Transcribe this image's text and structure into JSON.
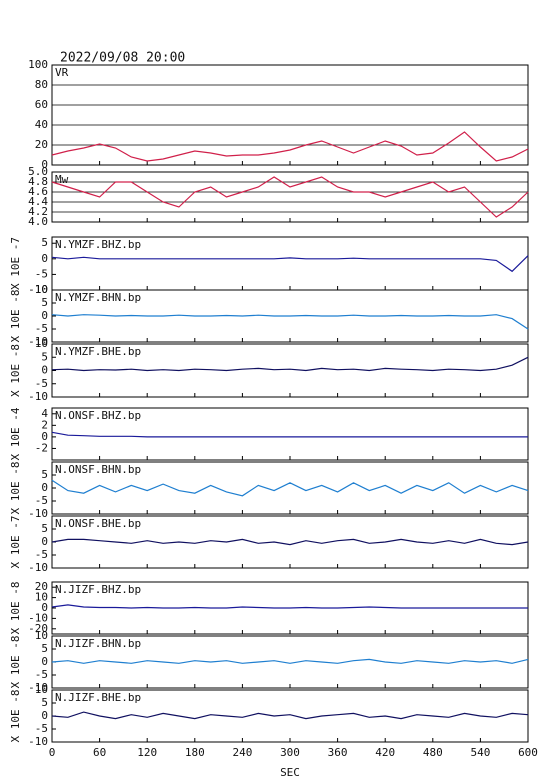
{
  "chart_data": [
    {
      "type": "line",
      "title": "2022/09/08 20:00",
      "label": "VR",
      "xlim": [
        0,
        600
      ],
      "ylim": [
        0,
        100
      ],
      "yticks": [
        0,
        20,
        40,
        60,
        80,
        100
      ],
      "grid": true,
      "x": [
        0,
        20,
        40,
        60,
        80,
        100,
        120,
        140,
        160,
        180,
        200,
        220,
        240,
        260,
        280,
        300,
        320,
        340,
        360,
        380,
        400,
        420,
        440,
        460,
        480,
        500,
        520,
        540,
        560,
        580,
        600
      ],
      "series": [
        {
          "color": "#d0204a",
          "values": [
            10,
            14,
            17,
            21,
            17,
            8,
            4,
            6,
            10,
            14,
            12,
            9,
            10,
            10,
            12,
            15,
            20,
            24,
            18,
            12,
            18,
            24,
            19,
            10,
            12,
            22,
            33,
            18,
            4,
            8,
            16
          ]
        }
      ]
    },
    {
      "type": "line",
      "label": "Mw",
      "xlim": [
        0,
        600
      ],
      "ylim": [
        4,
        5
      ],
      "yticks": [
        {
          "value": 4,
          "label": "4.0"
        },
        {
          "value": 4.2,
          "label": "4.2"
        },
        {
          "value": 4.4,
          "label": "4.4"
        },
        {
          "value": 4.6,
          "label": "4.6"
        },
        {
          "value": 4.8,
          "label": "4.8"
        },
        {
          "value": 5,
          "label": "5.0"
        }
      ],
      "grid": true,
      "x": [
        0,
        20,
        40,
        60,
        80,
        100,
        120,
        140,
        160,
        180,
        200,
        220,
        240,
        260,
        280,
        300,
        320,
        340,
        360,
        380,
        400,
        420,
        440,
        460,
        480,
        500,
        520,
        540,
        560,
        580,
        600
      ],
      "series": [
        {
          "color": "#d0204a",
          "values": [
            4.8,
            4.7,
            4.6,
            4.5,
            4.8,
            4.8,
            4.6,
            4.4,
            4.3,
            4.6,
            4.7,
            4.5,
            4.6,
            4.7,
            4.9,
            4.7,
            4.8,
            4.9,
            4.7,
            4.6,
            4.6,
            4.5,
            4.6,
            4.7,
            4.8,
            4.6,
            4.7,
            4.4,
            4.1,
            4.3,
            4.6
          ]
        }
      ]
    },
    {
      "type": "line",
      "label": "N.YMZF.BHZ.bp",
      "ylabel": "X 10E -7",
      "xlim": [
        0,
        600
      ],
      "ylim": [
        -10,
        7
      ],
      "yticks": [
        -10,
        -5,
        0,
        5
      ],
      "grid": false,
      "x": [
        0,
        20,
        40,
        60,
        80,
        100,
        120,
        140,
        160,
        180,
        200,
        220,
        240,
        260,
        280,
        300,
        320,
        340,
        360,
        380,
        400,
        420,
        440,
        460,
        480,
        500,
        520,
        540,
        560,
        580,
        600
      ],
      "series": [
        {
          "color": "#1a1a9a",
          "values": [
            0.5,
            0,
            0.5,
            0,
            0,
            0,
            0,
            0,
            0,
            0,
            0,
            0,
            0,
            0,
            0,
            0.3,
            0,
            0,
            0,
            0.2,
            0,
            0,
            0,
            0,
            0,
            0,
            0,
            0,
            -0.5,
            -4,
            1
          ]
        }
      ]
    },
    {
      "type": "line",
      "label": "N.YMZF.BHN.bp",
      "ylabel": "X 10E -8",
      "xlim": [
        0,
        600
      ],
      "ylim": [
        -10,
        10
      ],
      "yticks": [
        -10,
        -5,
        0,
        5,
        10
      ],
      "grid": false,
      "x": [
        0,
        20,
        40,
        60,
        80,
        100,
        120,
        140,
        160,
        180,
        200,
        220,
        240,
        260,
        280,
        300,
        320,
        340,
        360,
        380,
        400,
        420,
        440,
        460,
        480,
        500,
        520,
        540,
        560,
        580,
        600
      ],
      "series": [
        {
          "color": "#1f7fd0",
          "values": [
            0.5,
            0,
            0.5,
            0.3,
            0,
            0.2,
            0,
            0,
            0.3,
            0,
            0,
            0.2,
            0,
            0.3,
            0,
            0,
            0.2,
            0,
            0,
            0.3,
            0,
            0,
            0.2,
            0,
            0,
            0.2,
            0,
            0,
            0.5,
            -1,
            -5
          ]
        }
      ]
    },
    {
      "type": "line",
      "label": "N.YMZF.BHE.bp",
      "ylabel": "X 10E -8",
      "xlim": [
        0,
        600
      ],
      "ylim": [
        -10,
        10
      ],
      "yticks": [
        -10,
        -5,
        0,
        5,
        10
      ],
      "grid": false,
      "x": [
        0,
        20,
        40,
        60,
        80,
        100,
        120,
        140,
        160,
        180,
        200,
        220,
        240,
        260,
        280,
        300,
        320,
        340,
        360,
        380,
        400,
        420,
        440,
        460,
        480,
        500,
        520,
        540,
        560,
        580,
        600
      ],
      "series": [
        {
          "color": "#101060",
          "values": [
            0.3,
            0.5,
            0,
            0.3,
            0.2,
            0.5,
            0,
            0.3,
            0,
            0.5,
            0.3,
            0,
            0.5,
            0.8,
            0.3,
            0.5,
            0,
            0.8,
            0.3,
            0.5,
            0,
            0.8,
            0.5,
            0.3,
            0,
            0.5,
            0.3,
            0,
            0.5,
            2,
            5
          ]
        }
      ]
    },
    {
      "type": "line",
      "label": "N.ONSF.BHZ.bp",
      "ylabel": "X 10E -4",
      "xlim": [
        0,
        600
      ],
      "ylim": [
        -4,
        5
      ],
      "yticks": [
        -2,
        0,
        2,
        4
      ],
      "grid": false,
      "x": [
        0,
        20,
        40,
        60,
        80,
        100,
        120,
        140,
        160,
        180,
        200,
        220,
        240,
        260,
        280,
        300,
        320,
        340,
        360,
        380,
        400,
        420,
        440,
        460,
        480,
        500,
        520,
        540,
        560,
        580,
        600
      ],
      "series": [
        {
          "color": "#1a1a9a",
          "values": [
            0.8,
            0.3,
            0.2,
            0.1,
            0.1,
            0.1,
            0,
            0,
            0,
            0,
            0,
            0,
            0,
            0,
            0,
            0,
            0,
            0,
            0,
            0,
            0,
            0,
            0,
            0,
            0,
            0,
            0,
            0,
            0,
            0,
            0
          ]
        }
      ]
    },
    {
      "type": "line",
      "label": "N.ONSF.BHN.bp",
      "ylabel": "X 10E -8",
      "xlim": [
        0,
        600
      ],
      "ylim": [
        -10,
        10
      ],
      "yticks": [
        -10,
        -5,
        0,
        5
      ],
      "grid": false,
      "x": [
        0,
        20,
        40,
        60,
        80,
        100,
        120,
        140,
        160,
        180,
        200,
        220,
        240,
        260,
        280,
        300,
        320,
        340,
        360,
        380,
        400,
        420,
        440,
        460,
        480,
        500,
        520,
        540,
        560,
        580,
        600
      ],
      "series": [
        {
          "color": "#1f7fd0",
          "values": [
            3,
            -1,
            -2,
            1,
            -1.5,
            1,
            -1,
            1.5,
            -1,
            -2,
            1,
            -1.5,
            -3,
            1,
            -1,
            2,
            -1,
            1,
            -1.5,
            2,
            -1,
            1,
            -2,
            1,
            -1,
            2,
            -2,
            1,
            -1.5,
            1,
            -1
          ]
        }
      ]
    },
    {
      "type": "line",
      "label": "N.ONSF.BHE.bp",
      "ylabel": "X 10E -7",
      "xlim": [
        0,
        600
      ],
      "ylim": [
        -10,
        10
      ],
      "yticks": [
        -10,
        -5,
        0,
        5
      ],
      "grid": false,
      "x": [
        0,
        20,
        40,
        60,
        80,
        100,
        120,
        140,
        160,
        180,
        200,
        220,
        240,
        260,
        280,
        300,
        320,
        340,
        360,
        380,
        400,
        420,
        440,
        460,
        480,
        500,
        520,
        540,
        560,
        580,
        600
      ],
      "series": [
        {
          "color": "#101060",
          "values": [
            0,
            1,
            1,
            0.5,
            0,
            -0.5,
            0.5,
            -0.5,
            0,
            -0.5,
            0.5,
            0,
            1,
            -0.5,
            0,
            -1,
            0.5,
            -0.5,
            0.5,
            1,
            -0.5,
            0,
            1,
            0,
            -0.5,
            0.5,
            -0.5,
            1,
            -0.5,
            -1,
            0
          ]
        }
      ]
    },
    {
      "type": "line",
      "label": "N.JIZF.BHZ.bp",
      "ylabel": "X 10E -8",
      "xlim": [
        0,
        600
      ],
      "ylim": [
        -25,
        25
      ],
      "yticks": [
        -20,
        -10,
        0,
        10,
        20
      ],
      "grid": false,
      "x": [
        0,
        20,
        40,
        60,
        80,
        100,
        120,
        140,
        160,
        180,
        200,
        220,
        240,
        260,
        280,
        300,
        320,
        340,
        360,
        380,
        400,
        420,
        440,
        460,
        480,
        500,
        520,
        540,
        560,
        580,
        600
      ],
      "series": [
        {
          "color": "#1a1a9a",
          "values": [
            1,
            3,
            1,
            0.5,
            0.5,
            0,
            0.5,
            0,
            0,
            0.5,
            0,
            0,
            1,
            0.5,
            0,
            0,
            0.5,
            0,
            0,
            0.5,
            1,
            0.5,
            0,
            0,
            0,
            0,
            0,
            0,
            0,
            0,
            0
          ]
        }
      ]
    },
    {
      "type": "line",
      "label": "N.JIZF.BHN.bp",
      "ylabel": "X 10E -8",
      "xlim": [
        0,
        600
      ],
      "ylim": [
        -10,
        10
      ],
      "yticks": [
        -10,
        -5,
        0,
        5,
        10
      ],
      "grid": false,
      "x": [
        0,
        20,
        40,
        60,
        80,
        100,
        120,
        140,
        160,
        180,
        200,
        220,
        240,
        260,
        280,
        300,
        320,
        340,
        360,
        380,
        400,
        420,
        440,
        460,
        480,
        500,
        520,
        540,
        560,
        580,
        600
      ],
      "series": [
        {
          "color": "#1f7fd0",
          "values": [
            0,
            0.5,
            -0.5,
            0.5,
            0,
            -0.5,
            0.5,
            0,
            -0.5,
            0.5,
            0,
            0.5,
            -0.5,
            0,
            0.5,
            -0.5,
            0.5,
            0,
            -0.5,
            0.5,
            1,
            0,
            -0.5,
            0.5,
            0,
            -0.5,
            0.5,
            0,
            0.5,
            -0.5,
            1
          ]
        }
      ]
    },
    {
      "type": "line",
      "label": "N.JIZF.BHE.bp",
      "ylabel": "X 10E -8",
      "xlabel": "SEC",
      "xlim": [
        0,
        600
      ],
      "ylim": [
        -10,
        10
      ],
      "yticks": [
        -10,
        -5,
        0,
        5,
        10
      ],
      "grid": false,
      "xticks": [
        0,
        60,
        120,
        180,
        240,
        300,
        360,
        420,
        480,
        540,
        600
      ],
      "x": [
        0,
        20,
        40,
        60,
        80,
        100,
        120,
        140,
        160,
        180,
        200,
        220,
        240,
        260,
        280,
        300,
        320,
        340,
        360,
        380,
        400,
        420,
        440,
        460,
        480,
        500,
        520,
        540,
        560,
        580,
        600
      ],
      "series": [
        {
          "color": "#101060",
          "values": [
            0,
            -0.5,
            1.5,
            0,
            -1,
            0.5,
            -0.5,
            1,
            0,
            -1,
            0.5,
            0,
            -0.5,
            1,
            0,
            0.5,
            -1,
            0,
            0.5,
            1,
            -0.5,
            0,
            -1,
            0.5,
            0,
            -0.5,
            1,
            0,
            -0.5,
            1,
            0.5
          ]
        }
      ]
    }
  ]
}
